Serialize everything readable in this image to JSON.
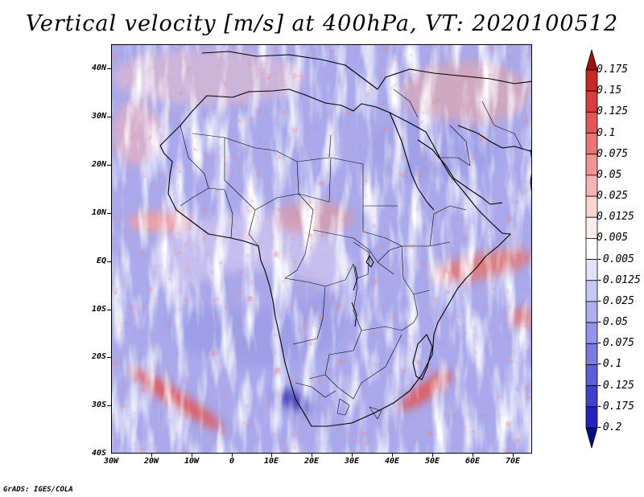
{
  "title": "Vertical velocity [m/s] at 400hPa, VT: 2020100512",
  "credit": "GrADS: IGES/COLA",
  "map": {
    "region": "Africa",
    "field": "vertical velocity",
    "level": "400hPa",
    "lat_range": [
      -40,
      45
    ],
    "lon_range": [
      -30,
      75
    ],
    "lat_labels": [
      "40N",
      "30N",
      "20N",
      "10N",
      "EQ",
      "10S",
      "20S",
      "30S",
      "40S"
    ],
    "lon_labels": [
      "30W",
      "20W",
      "10W",
      "0",
      "10E",
      "20E",
      "30E",
      "40E",
      "50E",
      "60E",
      "70E"
    ],
    "features": [
      "coastlines",
      "country boundaries"
    ]
  },
  "colorbar": {
    "labels": [
      "0.175",
      "0.15",
      "0.125",
      "0.1",
      "0.075",
      "0.05",
      "0.025",
      "0.0125",
      "0.005",
      "-0.005",
      "-0.0125",
      "-0.025",
      "-0.05",
      "-0.075",
      "-0.1",
      "-0.125",
      "-0.175",
      "-0.2"
    ],
    "colors": [
      "#b21818",
      "#c82828",
      "#d83c3c",
      "#e45656",
      "#ec7474",
      "#f29494",
      "#f7b4b4",
      "#fbd4d4",
      "#fdeeee",
      "#ffffff",
      "#e2e2fa",
      "#c8c8f4",
      "#aeaef0",
      "#9494ea",
      "#7a7ae2",
      "#5e5ed8",
      "#4040cc",
      "#2424b8",
      "#0c0c98"
    ],
    "top_arrow_color": "#a01010",
    "bottom_arrow_color": "#0a0a80"
  }
}
